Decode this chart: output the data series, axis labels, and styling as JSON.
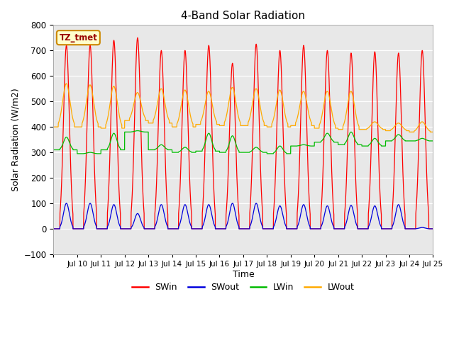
{
  "title": "4-Band Solar Radiation",
  "xlabel": "Time",
  "ylabel": "Solar Radiation (W/m2)",
  "ylim": [
    -100,
    800
  ],
  "yticks": [
    -100,
    0,
    100,
    200,
    300,
    400,
    500,
    600,
    700,
    800
  ],
  "n_days": 16,
  "colors": {
    "SWin": "#ff0000",
    "SWout": "#0000dd",
    "LWin": "#00bb00",
    "LWout": "#ffaa00"
  },
  "annotation_text": "TZ_tmet",
  "annotation_bg": "#ffffcc",
  "annotation_border": "#cc8800",
  "plot_bg": "#e8e8e8",
  "fig_bg": "#ffffff",
  "legend_labels": [
    "SWin",
    "SWout",
    "LWin",
    "LWout"
  ],
  "SWin_peaks": [
    720,
    720,
    740,
    750,
    700,
    700,
    720,
    650,
    725,
    700,
    720,
    700,
    690,
    695,
    690,
    700
  ],
  "SWout_peaks": [
    100,
    100,
    95,
    60,
    95,
    95,
    95,
    100,
    100,
    90,
    95,
    90,
    92,
    90,
    95,
    5
  ],
  "LWout_night": [
    400,
    400,
    395,
    425,
    415,
    400,
    410,
    405,
    405,
    400,
    405,
    395,
    390,
    390,
    385,
    380
  ],
  "LWout_day": [
    570,
    565,
    560,
    535,
    550,
    545,
    540,
    555,
    550,
    545,
    540,
    540,
    540,
    420,
    415,
    420
  ],
  "LWin_night": [
    310,
    295,
    310,
    380,
    310,
    300,
    305,
    300,
    300,
    295,
    325,
    340,
    330,
    325,
    345,
    345
  ],
  "LWin_day": [
    360,
    300,
    375,
    385,
    330,
    320,
    375,
    365,
    320,
    325,
    330,
    375,
    380,
    355,
    370,
    355
  ]
}
